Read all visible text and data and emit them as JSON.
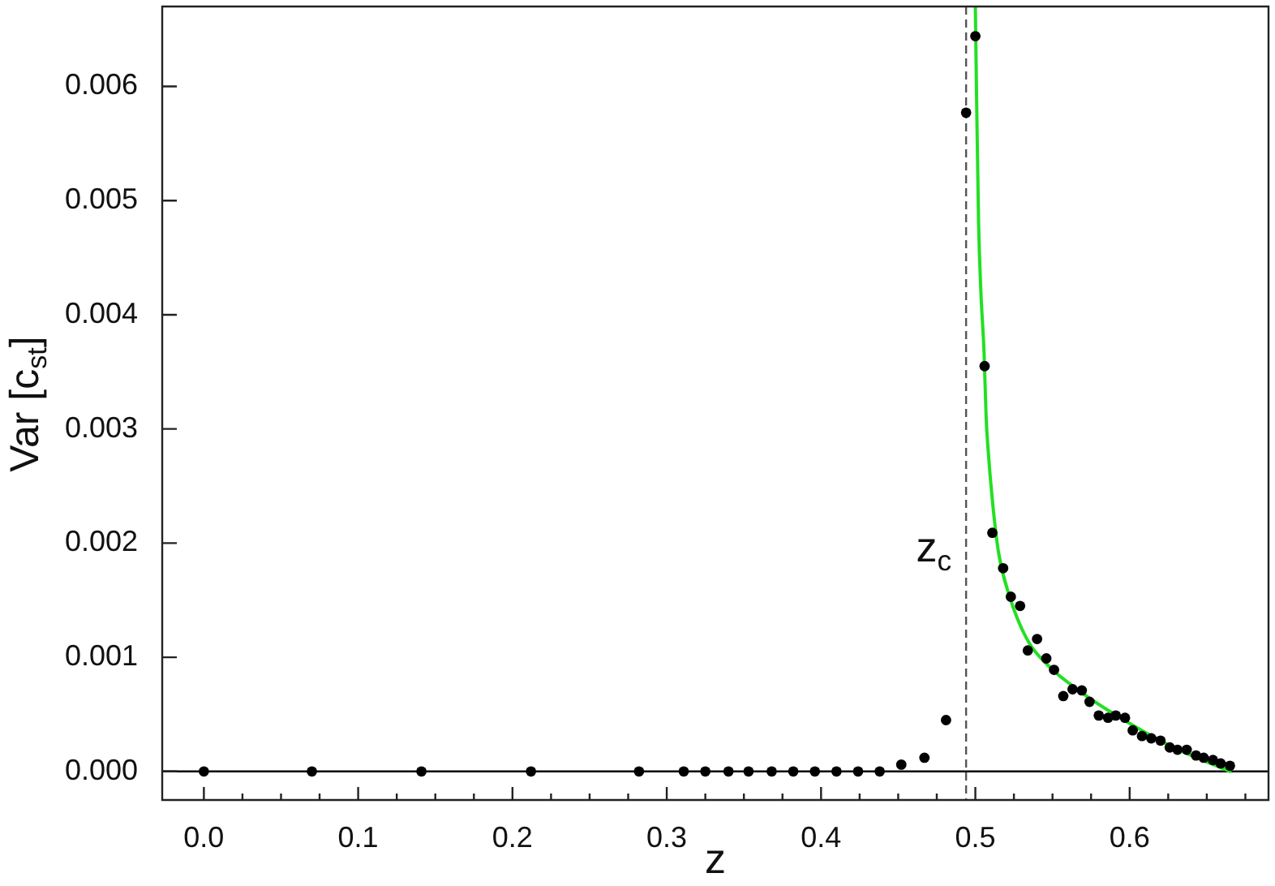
{
  "chart_data": {
    "type": "scatter",
    "xlabel": "z",
    "ylabel": "Var [c$_{st}$]",
    "xlim": [
      -0.027,
      0.69
    ],
    "ylim": [
      -0.00025,
      0.0067
    ],
    "xticks": [
      {
        "value": 0,
        "label": "0.0"
      },
      {
        "value": 0.025,
        "label": null
      },
      {
        "value": 0.05,
        "label": null
      },
      {
        "value": 0.075,
        "label": null
      },
      0.1,
      {
        "value": 0.125,
        "label": null
      },
      {
        "value": 0.15,
        "label": null
      },
      {
        "value": 0.175,
        "label": null
      },
      0.2,
      {
        "value": 0.225,
        "label": null
      },
      {
        "value": 0.25,
        "label": null
      },
      {
        "value": 0.275,
        "label": null
      },
      0.3,
      {
        "value": 0.325,
        "label": null
      },
      {
        "value": 0.35,
        "label": null
      },
      {
        "value": 0.375,
        "label": null
      },
      0.4,
      {
        "value": 0.425,
        "label": null
      },
      {
        "value": 0.45,
        "label": null
      },
      {
        "value": 0.475,
        "label": null
      },
      0.5,
      {
        "value": 0.525,
        "label": null
      },
      {
        "value": 0.55,
        "label": null
      },
      {
        "value": 0.575,
        "label": null
      },
      0.6,
      {
        "value": 0.625,
        "label": null
      },
      {
        "value": 0.65,
        "label": null
      },
      {
        "value": 0.675,
        "label": null
      }
    ],
    "yticks": [
      {
        "value": 0,
        "label": "0.000"
      },
      0.001,
      0.002,
      0.003,
      0.004,
      0.005,
      0.006
    ],
    "marker": "circle",
    "series": [
      {
        "type": "line",
        "marker": "none",
        "color": "#22e022",
        "x": [
          0.5,
          0.5007,
          0.5021,
          0.5036,
          0.5057,
          0.507,
          0.5081,
          0.511,
          0.515,
          0.522,
          0.533,
          0.547,
          0.568,
          0.589,
          0.613,
          0.63,
          0.665
        ],
        "values": [
          0.0067,
          0.006,
          0.0048,
          0.0042,
          0.00365,
          0.0031,
          0.00285,
          0.00238,
          0.00192,
          0.00154,
          0.00117,
          0.00093,
          0.0007,
          0.00051,
          0.00032,
          0.0002,
          0
        ]
      },
      {
        "type": "scatter",
        "color": "#000000",
        "x": [
          0,
          0.07,
          0.141,
          0.212,
          0.282,
          0.311,
          0.325,
          0.34,
          0.353,
          0.368,
          0.382,
          0.396,
          0.41,
          0.424,
          0.438,
          0.452,
          0.467,
          0.481,
          0.494,
          0.5,
          0.506,
          0.511,
          0.518,
          0.523,
          0.529,
          0.534,
          0.54,
          0.546,
          0.551,
          0.557,
          0.563,
          0.569,
          0.574,
          0.58,
          0.586,
          0.591,
          0.597,
          0.602,
          0.608,
          0.614,
          0.62,
          0.626,
          0.631,
          0.637,
          0.643,
          0.648,
          0.654,
          0.659,
          0.665
        ],
        "values": [
          0,
          0,
          0,
          0,
          0,
          0,
          0,
          0,
          0,
          0,
          0,
          0,
          0,
          0,
          0,
          6e-05,
          0.00012,
          0.00045,
          0.00577,
          0.00644,
          0.00355,
          0.00209,
          0.00178,
          0.00153,
          0.00145,
          0.00106,
          0.00116,
          0.00099,
          0.00089,
          0.00066,
          0.00072,
          0.00071,
          0.00061,
          0.00049,
          0.00047,
          0.00049,
          0.00047,
          0.00036,
          0.00031,
          0.00029,
          0.00027,
          0.00021,
          0.00019,
          0.00019,
          0.00014,
          0.00012,
          0.0001,
          7e-05,
          5e-05
        ]
      }
    ],
    "ref_lines": [
      {
        "axis": "x",
        "value": 0.494,
        "label": "z$_{c}$",
        "color": "#555555",
        "line_style": "dashed"
      },
      {
        "axis": "y",
        "value": 0,
        "color": "#000000",
        "line_style": "solid"
      }
    ]
  }
}
